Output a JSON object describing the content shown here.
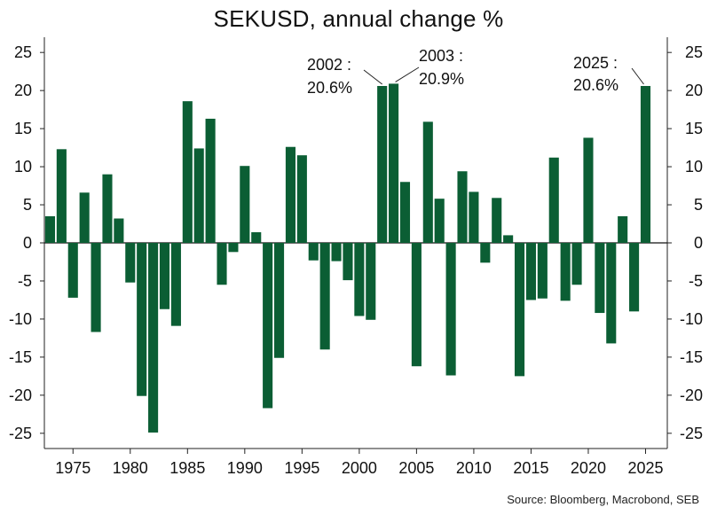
{
  "chart_data": {
    "type": "bar",
    "title": "SEKUSD, annual change %",
    "source": "Source: Bloomberg, Macrobond, SEB",
    "xlabel": "",
    "ylabel": "",
    "ylim": [
      -27,
      27
    ],
    "xlim": [
      1972.5,
      2026.9
    ],
    "yticks": [
      "25",
      "20",
      "15",
      "10",
      "5",
      "0",
      "-5",
      "-10",
      "-15",
      "-20",
      "-25"
    ],
    "xticks": [
      "1975",
      "1980",
      "1985",
      "1990",
      "1995",
      "2000",
      "2005",
      "2010",
      "2015",
      "2020",
      "2025"
    ],
    "bar_color": "#0b5e34",
    "x": [
      1973,
      1974,
      1975,
      1976,
      1977,
      1978,
      1979,
      1980,
      1981,
      1982,
      1983,
      1984,
      1985,
      1986,
      1987,
      1988,
      1989,
      1990,
      1991,
      1992,
      1993,
      1994,
      1995,
      1996,
      1997,
      1998,
      1999,
      2000,
      2001,
      2002,
      2003,
      2004,
      2005,
      2006,
      2007,
      2008,
      2009,
      2010,
      2011,
      2012,
      2013,
      2014,
      2015,
      2016,
      2017,
      2018,
      2019,
      2020,
      2021,
      2022,
      2023,
      2024,
      2025
    ],
    "values": [
      3.5,
      12.3,
      -7.2,
      6.6,
      -11.7,
      9.0,
      3.2,
      -5.2,
      -20.1,
      -24.9,
      -8.7,
      -10.9,
      18.6,
      12.4,
      16.3,
      -5.5,
      -1.2,
      10.1,
      1.4,
      -21.7,
      -15.1,
      12.6,
      11.5,
      -2.3,
      -14.0,
      -2.4,
      -4.9,
      -9.6,
      -10.1,
      20.6,
      20.9,
      8.0,
      -16.2,
      15.9,
      5.8,
      -17.4,
      9.4,
      6.7,
      -2.6,
      5.9,
      1.0,
      -17.5,
      -7.5,
      -7.3,
      11.2,
      -7.6,
      -5.5,
      13.8,
      -9.2,
      -13.2,
      3.5,
      -9.0,
      20.6
    ],
    "annotations": [
      {
        "year_line1": "2002 :",
        "value_line2": "20.6%",
        "year": 2002,
        "value": 20.6
      },
      {
        "year_line1": "2003 :",
        "value_line2": "20.9%",
        "year": 2003,
        "value": 20.9
      },
      {
        "year_line1": "2025 :",
        "value_line2": "20.6%",
        "year": 2025,
        "value": 20.6
      }
    ]
  }
}
